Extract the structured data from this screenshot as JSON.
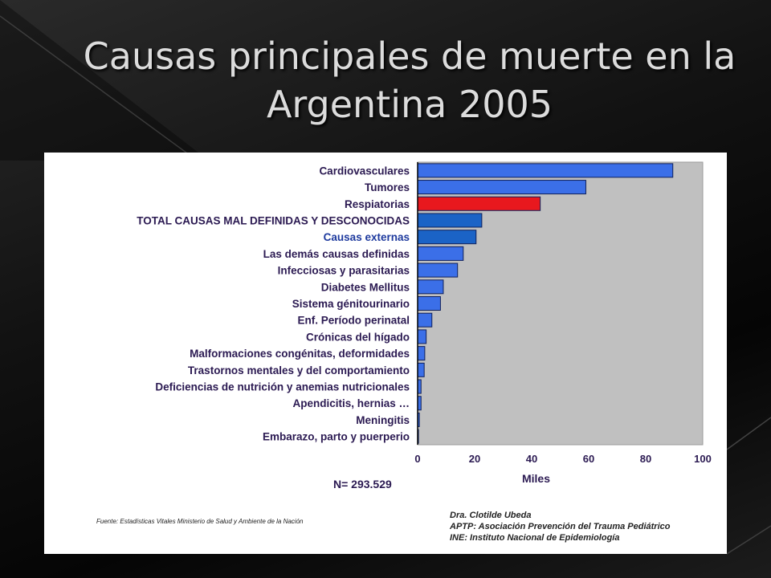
{
  "title": "Causas principales de muerte en la Argentina 2005",
  "chart_data": {
    "type": "bar",
    "orientation": "horizontal",
    "categories": [
      "Cardiovasculares",
      "Tumores",
      "Respiatorias",
      "TOTAL CAUSAS MAL DEFINIDAS Y DESCONOCIDAS",
      "Causas externas",
      "Las demás causas definidas",
      "Infecciosas y parasitarias",
      "Diabetes Mellitus",
      "Sistema génitourinario",
      "Enf. Período perinatal",
      "Crónicas del hígado",
      "Malformaciones congénitas, deformidades",
      "Trastornos mentales y del comportamiento",
      "Deficiencias de nutrición y anemias nutricionales",
      "Apendicitis, hernias …",
      "Meningitis",
      "Embarazo, parto y puerperio"
    ],
    "values": [
      89.5,
      59,
      43,
      22.5,
      20.5,
      16,
      14,
      9,
      8,
      5,
      3,
      2.5,
      2.3,
      1.2,
      1.2,
      0.6,
      0.3
    ],
    "bar_colors": [
      "#3b6fe8",
      "#3b6fe8",
      "#e8181e",
      "#1b63c6",
      "#1b63c6",
      "#3b6fe8",
      "#3b6fe8",
      "#3b6fe8",
      "#3b6fe8",
      "#3b6fe8",
      "#3b6fe8",
      "#3b6fe8",
      "#3b6fe8",
      "#3b6fe8",
      "#3b6fe8",
      "#3b6fe8",
      "#3b6fe8"
    ],
    "label_colors": [
      "#2b1a52",
      "#2b1a52",
      "#2b1a52",
      "#2b1a52",
      "#1e3a9e",
      "#2b1a52",
      "#2b1a52",
      "#2b1a52",
      "#2b1a52",
      "#2b1a52",
      "#2b1a52",
      "#2b1a52",
      "#2b1a52",
      "#2b1a52",
      "#2b1a52",
      "#2b1a52",
      "#2b1a52"
    ],
    "xticks": [
      0,
      20,
      40,
      60,
      80,
      100
    ],
    "xlim": [
      0,
      100
    ],
    "xlabel": "Miles",
    "plot_background": "#c0c0c0",
    "grid": false
  },
  "n_label": "N= 293.529",
  "source": "Fuente: Estadísticas Vitales Ministerio de Salud y Ambiente de la Nación",
  "credits": [
    "Dra. Clotilde Ubeda",
    "APTP: Asociación Prevención del Trauma Pediátrico",
    "INE: Instituto Nacional de Epidemiología"
  ]
}
